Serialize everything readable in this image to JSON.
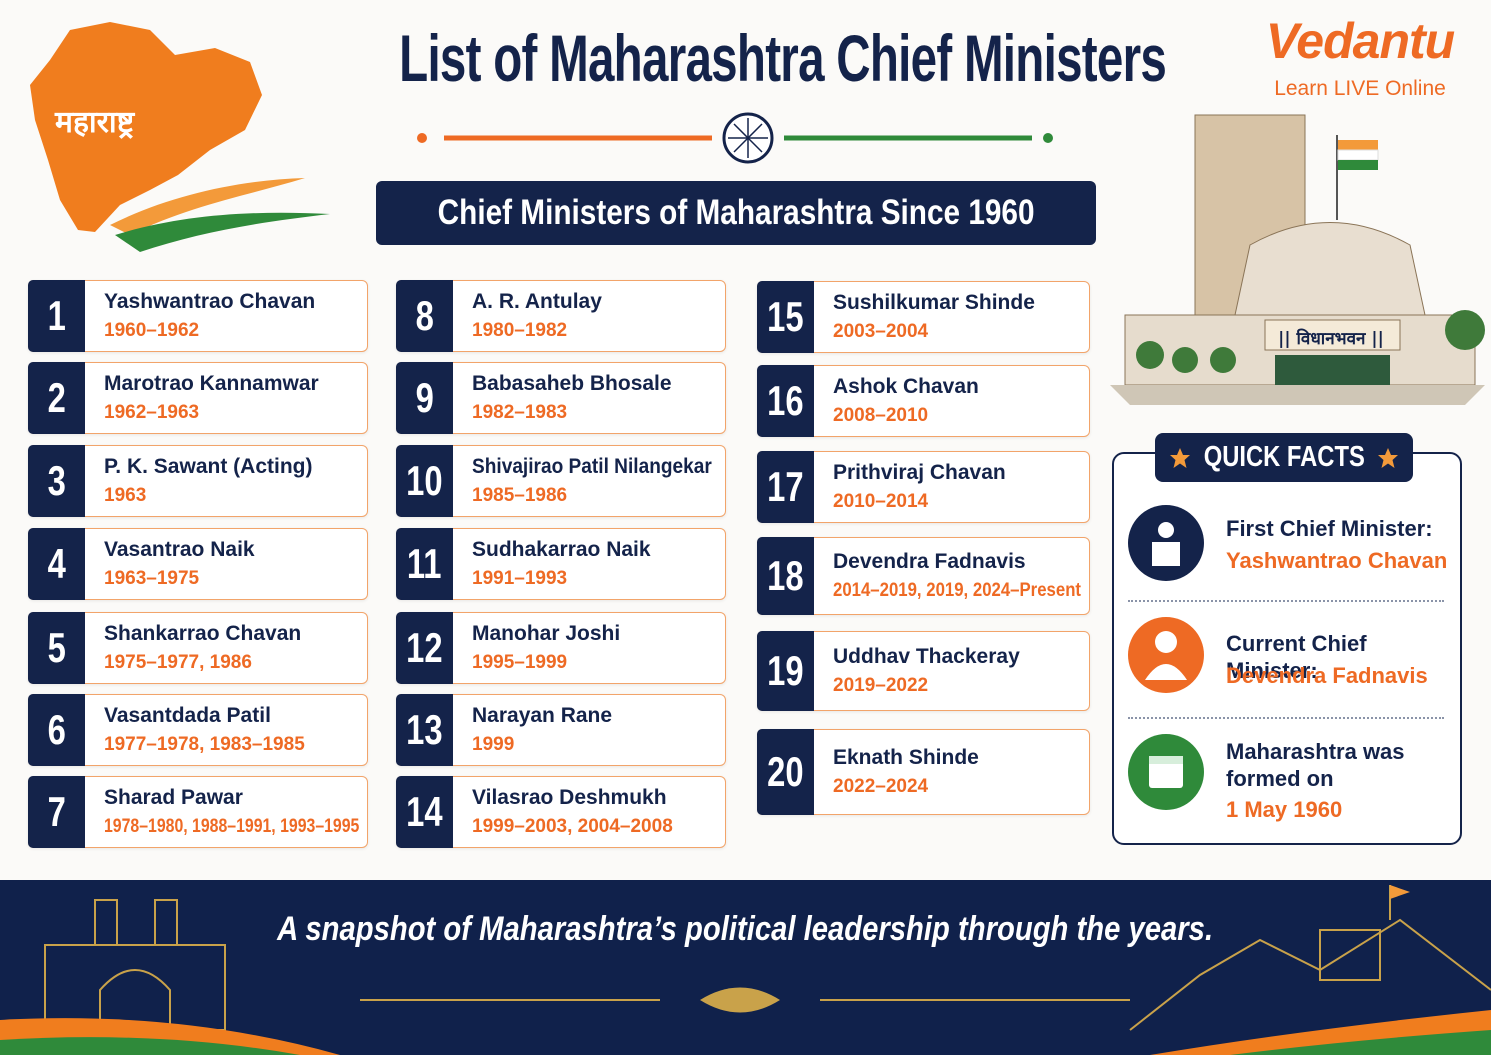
{
  "header": {
    "title": "List of Maharashtra Chief Ministers",
    "map_label": "महाराष्ट्र",
    "logo": {
      "name": "Vedantu",
      "tagline": "Learn LIVE Online"
    }
  },
  "subtitle": "Chief Ministers of Maharashtra Since 1960",
  "ministers": [
    {
      "number": "1",
      "name": "Yashwantrao Chavan",
      "years": "1960–1962"
    },
    {
      "number": "2",
      "name": "Marotrao Kannamwar",
      "years": "1962–1963"
    },
    {
      "number": "3",
      "name": "P. K. Sawant (Acting)",
      "years": "1963"
    },
    {
      "number": "4",
      "name": "Vasantrao Naik",
      "years": "1963–1975"
    },
    {
      "number": "5",
      "name": "Shankarrao Chavan",
      "years": "1975–1977, 1986"
    },
    {
      "number": "6",
      "name": "Vasantdada Patil",
      "years": "1977–1978, 1983–1985"
    },
    {
      "number": "7",
      "name": "Sharad Pawar",
      "years": "1978–1980, 1988–1991, 1993–1995"
    },
    {
      "number": "8",
      "name": "A. R. Antulay",
      "years": "1980–1982"
    },
    {
      "number": "9",
      "name": "Babasaheb Bhosale",
      "years": "1982–1983"
    },
    {
      "number": "10",
      "name": "Shivajirao Patil Nilangekar",
      "years": "1985–1986"
    },
    {
      "number": "11",
      "name": "Sudhakarrao Naik",
      "years": "1991–1993"
    },
    {
      "number": "12",
      "name": "Manohar Joshi",
      "years": "1995–1999"
    },
    {
      "number": "13",
      "name": "Narayan Rane",
      "years": "1999"
    },
    {
      "number": "14",
      "name": "Vilasrao Deshmukh",
      "years": "1999–2003, 2004–2008"
    },
    {
      "number": "15",
      "name": "Sushilkumar Shinde",
      "years": "2003–2004"
    },
    {
      "number": "16",
      "name": "Ashok Chavan",
      "years": "2008–2010"
    },
    {
      "number": "17",
      "name": "Prithviraj Chavan",
      "years": "2010–2014"
    },
    {
      "number": "18",
      "name": "Devendra Fadnavis",
      "years": "2014–2019, 2019, 2024–Present"
    },
    {
      "number": "19",
      "name": "Uddhav Thackeray",
      "years": "2019–2022"
    },
    {
      "number": "20",
      "name": "Eknath Shinde",
      "years": "2022–2024"
    }
  ],
  "building_label": "|| विधानभवन ||",
  "quick_facts": {
    "title": "QUICK FACTS",
    "items": [
      {
        "label": "First Chief Minister:",
        "value": "Yashwantrao Chavan"
      },
      {
        "label": "Current Chief Minister:",
        "value": "Devendra Fadnavis"
      },
      {
        "label": "Maharashtra was formed on",
        "value": "1 May 1960"
      }
    ]
  },
  "footer": {
    "tagline": "A snapshot of Maharashtra’s political leadership through the years."
  }
}
